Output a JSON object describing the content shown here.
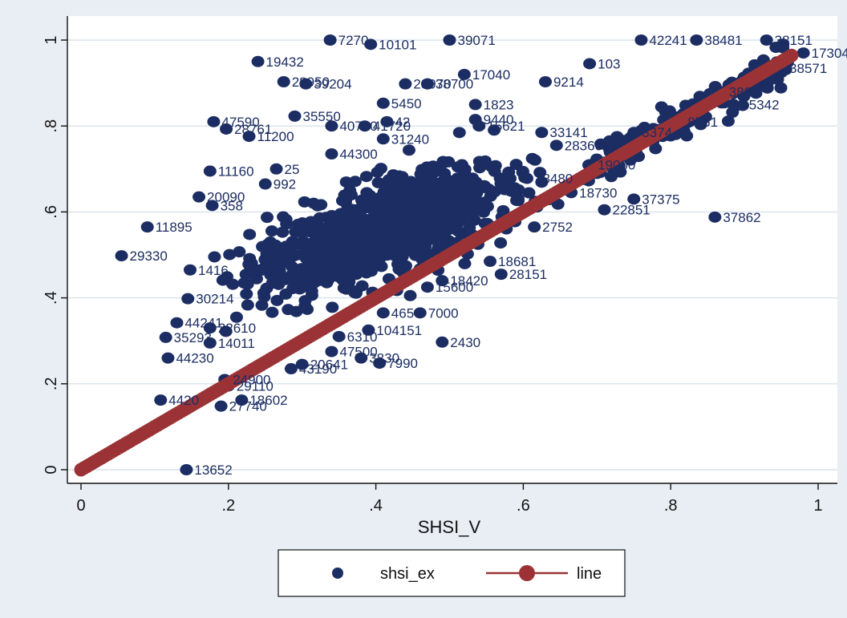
{
  "chart_data": {
    "type": "scatter",
    "xlabel": "SHSI_V",
    "ylabel": "",
    "xlim": [
      0,
      1
    ],
    "ylim": [
      0,
      1
    ],
    "x_ticks": [
      "0",
      ".2",
      ".4",
      ".6",
      ".8",
      "1"
    ],
    "y_ticks": [
      "0",
      ".2",
      ".4",
      ".6",
      ".8",
      "1"
    ],
    "grid": "horizontal",
    "legend_position": "bottom",
    "colors": {
      "scatter": "#1b2d62",
      "line": "#9b3336",
      "plot_bg": "#ffffff",
      "outer_bg": "#e9eef4"
    },
    "series": [
      {
        "name": "shsi_ex",
        "marker": "circle",
        "labeled_points": [
          {
            "x": 0.338,
            "y": 1.0,
            "label": "7270"
          },
          {
            "x": 0.393,
            "y": 0.99,
            "label": "10101"
          },
          {
            "x": 0.5,
            "y": 1.0,
            "label": "39071"
          },
          {
            "x": 0.24,
            "y": 0.95,
            "label": "19432"
          },
          {
            "x": 0.52,
            "y": 0.92,
            "label": "17040"
          },
          {
            "x": 0.275,
            "y": 0.903,
            "label": "28950"
          },
          {
            "x": 0.305,
            "y": 0.898,
            "label": "39204"
          },
          {
            "x": 0.44,
            "y": 0.898,
            "label": "23970"
          },
          {
            "x": 0.47,
            "y": 0.898,
            "label": "38700"
          },
          {
            "x": 0.63,
            "y": 0.903,
            "label": "9214"
          },
          {
            "x": 0.69,
            "y": 0.945,
            "label": "103"
          },
          {
            "x": 0.76,
            "y": 1.0,
            "label": "42241"
          },
          {
            "x": 0.835,
            "y": 1.0,
            "label": "38481"
          },
          {
            "x": 0.93,
            "y": 1.0,
            "label": "38151"
          },
          {
            "x": 0.98,
            "y": 0.97,
            "label": "17304"
          },
          {
            "x": 0.95,
            "y": 0.935,
            "label": "38571"
          },
          {
            "x": 0.868,
            "y": 0.88,
            "label": "3820"
          },
          {
            "x": 0.885,
            "y": 0.85,
            "label": "45342"
          },
          {
            "x": 0.812,
            "y": 0.81,
            "label": "8751"
          },
          {
            "x": 0.75,
            "y": 0.785,
            "label": "3374"
          },
          {
            "x": 0.41,
            "y": 0.853,
            "label": "5450"
          },
          {
            "x": 0.29,
            "y": 0.823,
            "label": "35550"
          },
          {
            "x": 0.18,
            "y": 0.81,
            "label": "47590"
          },
          {
            "x": 0.197,
            "y": 0.793,
            "label": "28761"
          },
          {
            "x": 0.228,
            "y": 0.776,
            "label": "11200"
          },
          {
            "x": 0.34,
            "y": 0.8,
            "label": "40760"
          },
          {
            "x": 0.385,
            "y": 0.8,
            "label": "41720"
          },
          {
            "x": 0.415,
            "y": 0.81,
            "label": "42"
          },
          {
            "x": 0.41,
            "y": 0.77,
            "label": "31240"
          },
          {
            "x": 0.535,
            "y": 0.85,
            "label": "1823"
          },
          {
            "x": 0.535,
            "y": 0.815,
            "label": "9440"
          },
          {
            "x": 0.54,
            "y": 0.8,
            "label": "15621"
          },
          {
            "x": 0.625,
            "y": 0.785,
            "label": "33141"
          },
          {
            "x": 0.645,
            "y": 0.755,
            "label": "28360"
          },
          {
            "x": 0.34,
            "y": 0.735,
            "label": "44300"
          },
          {
            "x": 0.175,
            "y": 0.695,
            "label": "11160"
          },
          {
            "x": 0.265,
            "y": 0.7,
            "label": "25"
          },
          {
            "x": 0.25,
            "y": 0.665,
            "label": "992"
          },
          {
            "x": 0.16,
            "y": 0.635,
            "label": "20090"
          },
          {
            "x": 0.178,
            "y": 0.615,
            "label": "358"
          },
          {
            "x": 0.09,
            "y": 0.565,
            "label": "11895"
          },
          {
            "x": 0.055,
            "y": 0.498,
            "label": "29330"
          },
          {
            "x": 0.148,
            "y": 0.465,
            "label": "1416"
          },
          {
            "x": 0.605,
            "y": 0.678,
            "label": "38480"
          },
          {
            "x": 0.69,
            "y": 0.71,
            "label": "19000"
          },
          {
            "x": 0.665,
            "y": 0.645,
            "label": "18730"
          },
          {
            "x": 0.75,
            "y": 0.63,
            "label": "37375"
          },
          {
            "x": 0.86,
            "y": 0.588,
            "label": "37862"
          },
          {
            "x": 0.71,
            "y": 0.605,
            "label": "22851"
          },
          {
            "x": 0.615,
            "y": 0.565,
            "label": "2752"
          },
          {
            "x": 0.555,
            "y": 0.485,
            "label": "18681"
          },
          {
            "x": 0.57,
            "y": 0.455,
            "label": "28151"
          },
          {
            "x": 0.49,
            "y": 0.44,
            "label": "18420"
          },
          {
            "x": 0.47,
            "y": 0.425,
            "label": "15600"
          },
          {
            "x": 0.46,
            "y": 0.365,
            "label": "7000"
          },
          {
            "x": 0.41,
            "y": 0.365,
            "label": "4650"
          },
          {
            "x": 0.49,
            "y": 0.297,
            "label": "2430"
          },
          {
            "x": 0.39,
            "y": 0.325,
            "label": "104151"
          },
          {
            "x": 0.35,
            "y": 0.31,
            "label": "6310"
          },
          {
            "x": 0.34,
            "y": 0.275,
            "label": "47500"
          },
          {
            "x": 0.38,
            "y": 0.26,
            "label": "3830"
          },
          {
            "x": 0.405,
            "y": 0.248,
            "label": "7990"
          },
          {
            "x": 0.3,
            "y": 0.245,
            "label": "20641"
          },
          {
            "x": 0.285,
            "y": 0.235,
            "label": "43190"
          },
          {
            "x": 0.13,
            "y": 0.342,
            "label": "44241"
          },
          {
            "x": 0.115,
            "y": 0.308,
            "label": "35293"
          },
          {
            "x": 0.175,
            "y": 0.33,
            "label": "22610"
          },
          {
            "x": 0.175,
            "y": 0.295,
            "label": "14011"
          },
          {
            "x": 0.118,
            "y": 0.26,
            "label": "44230"
          },
          {
            "x": 0.195,
            "y": 0.21,
            "label": "24900"
          },
          {
            "x": 0.2,
            "y": 0.195,
            "label": "29110"
          },
          {
            "x": 0.108,
            "y": 0.162,
            "label": "4420"
          },
          {
            "x": 0.218,
            "y": 0.162,
            "label": "18602"
          },
          {
            "x": 0.19,
            "y": 0.148,
            "label": "27740"
          },
          {
            "x": 0.143,
            "y": 0.0,
            "label": "13652"
          },
          {
            "x": 0.145,
            "y": 0.398,
            "label": "30214"
          }
        ]
      },
      {
        "name": "line",
        "marker": "circle",
        "y_equals_x": true,
        "x_range": [
          0,
          0.965
        ]
      }
    ]
  },
  "legend": {
    "items": [
      "shsi_ex",
      "line"
    ]
  }
}
